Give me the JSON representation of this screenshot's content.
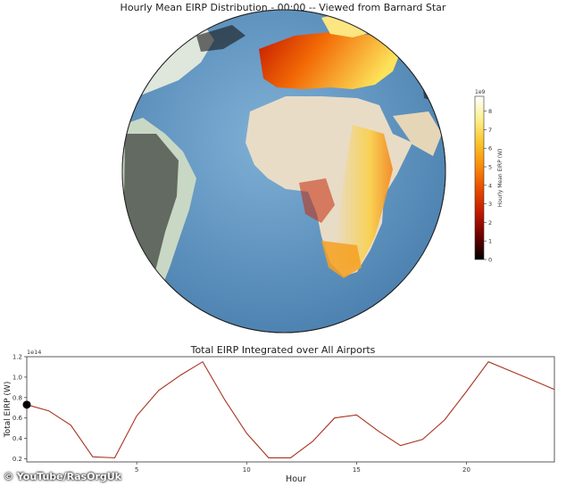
{
  "globe": {
    "title": "Hourly Mean EIRP Distribution - 00:00 -- Viewed from Barnard Star",
    "ocean_color": "#5f93bf",
    "land_color": "#e8dcc6",
    "vegetation_color": "#c2d6c0"
  },
  "colorbar": {
    "label": "Hourly Mean EIRP (W)",
    "scale_note": "1e9",
    "ticks": [
      "0",
      "1",
      "2",
      "3",
      "4",
      "5",
      "6",
      "7",
      "8"
    ],
    "colors": [
      "#000000",
      "#6b0000",
      "#c01a00",
      "#e84a00",
      "#f98c0a",
      "#fbc42a",
      "#fcf08a",
      "#ffffff"
    ]
  },
  "chart_data": {
    "type": "line",
    "title": "Total EIRP Integrated over All Airports",
    "xlabel": "Hour",
    "ylabel": "Total EIRP (W)",
    "y_scale_note": "1e14",
    "x": [
      0,
      1,
      2,
      3,
      4,
      5,
      6,
      7,
      8,
      9,
      10,
      11,
      12,
      13,
      14,
      15,
      16,
      17,
      18,
      19,
      20,
      21,
      22,
      23,
      24
    ],
    "values": [
      0.73,
      0.67,
      0.53,
      0.22,
      0.21,
      0.62,
      0.87,
      1.02,
      1.15,
      0.78,
      0.45,
      0.21,
      0.21,
      0.37,
      0.6,
      0.63,
      0.47,
      0.33,
      0.39,
      0.58,
      0.86,
      1.15,
      1.06,
      0.97,
      0.88
    ],
    "xlim": [
      0,
      24
    ],
    "ylim": [
      0.17,
      1.2
    ],
    "xticks": [
      "5",
      "10",
      "15",
      "20"
    ],
    "yticks": [
      "0.2",
      "0.4",
      "0.6",
      "0.8",
      "1.0",
      "1.2"
    ],
    "marker_x": 0,
    "line_color": "#a8321e",
    "grid": false
  },
  "credit": "© YouTube/RasOrgUk"
}
